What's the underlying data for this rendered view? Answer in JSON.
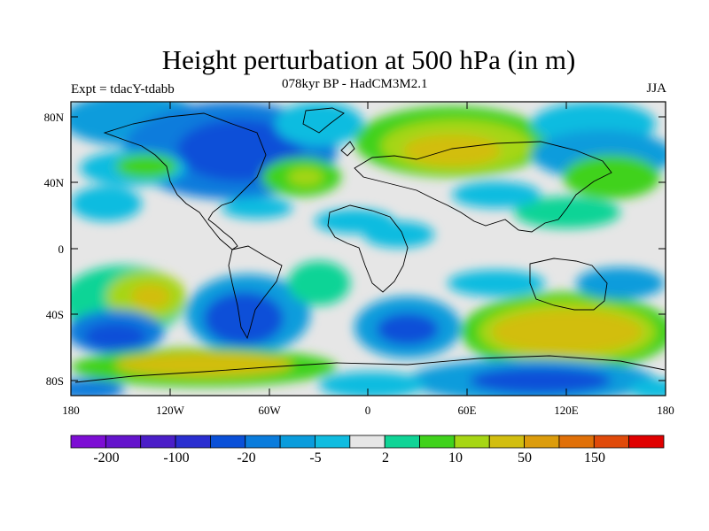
{
  "title": "Height perturbation at 500 hPa (in m)",
  "subtitle_left": "Expt = tdacY-tdabb",
  "subtitle_center": "078kyr BP - HadCM3M2.1",
  "subtitle_right": "JJA",
  "lat_ticks": [
    "80N",
    "40N",
    "0",
    "40S",
    "80S"
  ],
  "lon_ticks": [
    "180",
    "120W",
    "60W",
    "0",
    "60E",
    "120E",
    "180"
  ],
  "colorbar": {
    "colors": [
      "#7d0ed4",
      "#6414cc",
      "#4b1ec8",
      "#2a2ed0",
      "#0a50d8",
      "#0a7cdc",
      "#0a9cdc",
      "#10bce0",
      "#e6e6e6",
      "#10d496",
      "#40d21c",
      "#a6d614",
      "#d2be10",
      "#dc9c0c",
      "#e07008",
      "#e04a0a",
      "#e00000"
    ],
    "labels": [
      "-200",
      "-100",
      "-20",
      "-5",
      "2",
      "10",
      "50",
      "150"
    ]
  },
  "map_background": "#e6e6e6"
}
